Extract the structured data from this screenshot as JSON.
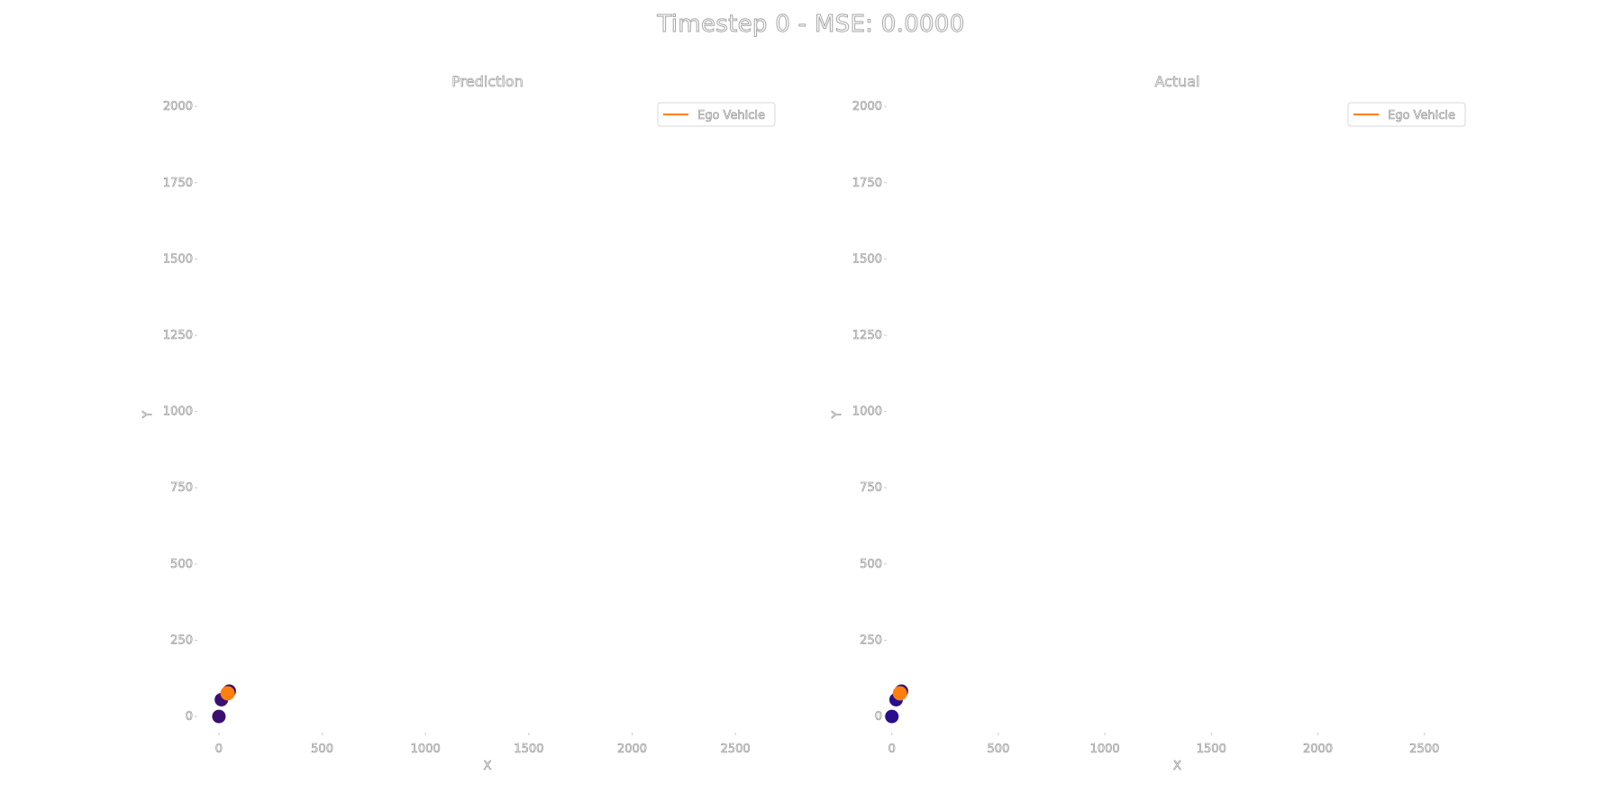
{
  "figure": {
    "suptitle": "Timestep 0 - MSE: 0.0000"
  },
  "chart_data": [
    {
      "type": "scatter",
      "title": "Prediction",
      "xlabel": "X",
      "ylabel": "Y",
      "xlim": [
        -100,
        2700
      ],
      "ylim": [
        -50,
        2030
      ],
      "x_ticks": [
        0,
        500,
        1000,
        1500,
        2000,
        2500
      ],
      "y_ticks": [
        0,
        250,
        500,
        750,
        1000,
        1250,
        1500,
        1750,
        2000
      ],
      "grid": false,
      "legend": {
        "placement": "top-right",
        "entries": [
          {
            "label": "Ego Vehicle",
            "color": "#ff7f0e",
            "marker": "line"
          }
        ]
      },
      "series": [
        {
          "name": "Ego Vehicle",
          "color": "#ff7f0e",
          "points": [
            {
              "x": 42,
              "y": 76
            }
          ]
        },
        {
          "name": "",
          "color": "#3b0f6f",
          "points": [
            {
              "x": 0,
              "y": 0
            },
            {
              "x": 12,
              "y": 55
            },
            {
              "x": 50,
              "y": 83
            }
          ]
        }
      ]
    },
    {
      "type": "scatter",
      "title": "Actual",
      "xlabel": "X",
      "ylabel": "Y",
      "xlim": [
        -20,
        2700
      ],
      "ylim": [
        -50,
        2030
      ],
      "x_ticks": [
        0,
        500,
        1000,
        1500,
        2000,
        2500
      ],
      "y_ticks": [
        0,
        250,
        500,
        750,
        1000,
        1250,
        1500,
        1750,
        2000
      ],
      "grid": false,
      "legend": {
        "placement": "top-right",
        "entries": [
          {
            "label": "Ego Vehicle",
            "color": "#ff7f0e",
            "marker": "line"
          }
        ]
      },
      "series": [
        {
          "name": "Ego Vehicle",
          "color": "#ff7f0e",
          "points": [
            {
              "x": 38,
              "y": 76
            }
          ]
        },
        {
          "name": "",
          "color": "#2a0e8c",
          "points": [
            {
              "x": 0,
              "y": 0
            },
            {
              "x": 20,
              "y": 55
            },
            {
              "x": 45,
              "y": 83
            }
          ]
        }
      ]
    }
  ]
}
